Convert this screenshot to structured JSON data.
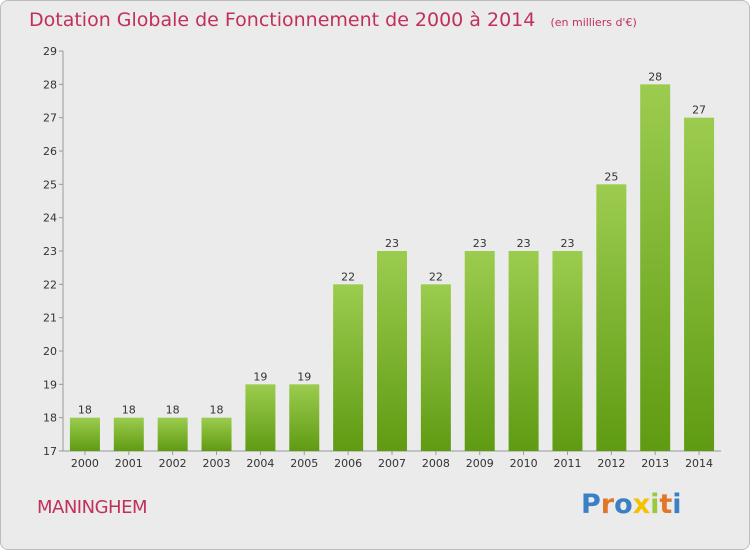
{
  "header": {
    "title": "Dotation Globale de Fonctionnement de 2000 à 2014",
    "subtitle": "(en milliers d'€)"
  },
  "footer": {
    "commune": "MANINGHEM",
    "logo": "Proxiti",
    "logo_colors": [
      "#3b7fc4",
      "#e0762a",
      "#3b7fc4",
      "#f2c200",
      "#9ac93f",
      "#e0762a",
      "#3b7fc4"
    ]
  },
  "colors": {
    "bar_top": "#9ccc4f",
    "bar_bottom": "#5f9b12",
    "accent": "#c0305a",
    "background": "#ebebeb"
  },
  "chart_data": {
    "type": "bar",
    "title": "Dotation Globale de Fonctionnement de 2000 à 2014",
    "subtitle": "(en milliers d'€)",
    "categories": [
      "2000",
      "2001",
      "2002",
      "2003",
      "2004",
      "2005",
      "2006",
      "2007",
      "2008",
      "2009",
      "2010",
      "2011",
      "2012",
      "2013",
      "2014"
    ],
    "values": [
      18,
      18,
      18,
      18,
      19,
      19,
      22,
      23,
      22,
      23,
      23,
      23,
      25,
      28,
      27
    ],
    "ylim": [
      17,
      29
    ],
    "yticks": [
      17,
      18,
      19,
      20,
      21,
      22,
      23,
      24,
      25,
      26,
      27,
      28,
      29
    ],
    "grid": false,
    "legend": "none"
  }
}
